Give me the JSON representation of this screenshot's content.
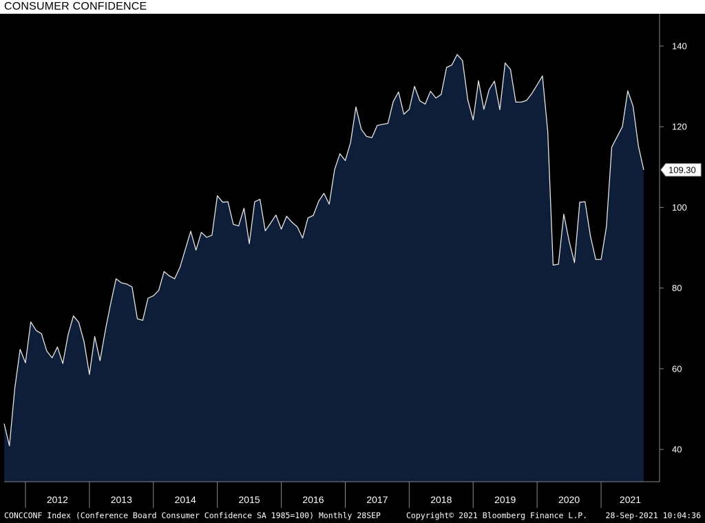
{
  "title": "CONSUMER CONFIDENCE",
  "footer": {
    "left": "CONCCONF Index (Conference Board Consumer Confidence SA 1985=100) Monthly 28SEP",
    "copyright": "Copyright© 2021 Bloomberg Finance L.P.",
    "timestamp": "28-Sep-2021 10:04:36"
  },
  "colors": {
    "background": "#000000",
    "area_fill": "#0e1e38",
    "line": "#e6e6e6",
    "axis": "#8a8a8a",
    "text": "#ffffff"
  },
  "chart_data": {
    "type": "area",
    "x_start": "2011-09",
    "x_end": "2021-09",
    "x_ticks": [
      "2012",
      "2013",
      "2014",
      "2015",
      "2016",
      "2017",
      "2018",
      "2019",
      "2020",
      "2021"
    ],
    "y_ticks": [
      40,
      60,
      80,
      100,
      120,
      140
    ],
    "ylim": [
      32,
      148
    ],
    "last_value_label": "109.30",
    "y_axis_side": "right",
    "values": [
      46.4,
      40.9,
      55.2,
      64.8,
      61.5,
      71.6,
      69.5,
      68.7,
      64.4,
      62.7,
      65.4,
      61.3,
      68.4,
      73.1,
      71.5,
      66.7,
      58.6,
      68.0,
      62.0,
      69.6,
      76.2,
      82.3,
      81.3,
      81.0,
      80.3,
      72.4,
      72.0,
      77.5,
      78.1,
      79.4,
      84.1,
      83.0,
      82.3,
      85.2,
      89.6,
      94.1,
      89.4,
      93.8,
      92.6,
      93.1,
      102.9,
      101.3,
      101.4,
      95.8,
      95.4,
      99.8,
      91.0,
      101.4,
      102.0,
      94.2,
      96.1,
      98.1,
      94.6,
      97.8,
      96.3,
      95.2,
      92.4,
      97.4,
      98.0,
      101.5,
      103.5,
      100.8,
      109.4,
      113.3,
      111.6,
      116.1,
      124.9,
      119.4,
      117.6,
      117.3,
      120.3,
      120.6,
      120.8,
      126.2,
      128.6,
      123.1,
      124.3,
      130.0,
      126.4,
      125.6,
      128.8,
      127.1,
      128.0,
      134.7,
      135.3,
      137.9,
      136.4,
      126.6,
      121.7,
      131.4,
      124.3,
      129.2,
      131.3,
      124.2,
      135.8,
      134.2,
      126.1,
      126.1,
      126.5,
      128.2,
      130.4,
      132.6,
      118.8,
      85.7,
      85.9,
      98.3,
      91.7,
      86.3,
      101.3,
      101.4,
      92.9,
      87.1,
      87.1,
      95.2,
      114.9,
      117.5,
      120.0,
      128.9,
      125.1,
      115.2,
      109.3
    ]
  }
}
